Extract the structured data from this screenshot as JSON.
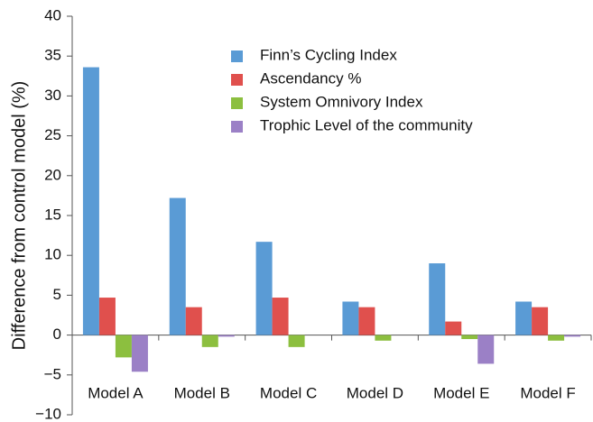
{
  "chart_data": {
    "type": "bar",
    "y_label": "Difference from control model (%)",
    "categories": [
      "Model A",
      "Model B",
      "Model C",
      "Model D",
      "Model E",
      "Model F"
    ],
    "series": [
      {
        "name": "Finn’s Cycling Index",
        "color": "#5a9bd5",
        "values": [
          33.6,
          17.2,
          11.7,
          4.2,
          9.0,
          4.2
        ]
      },
      {
        "name": "Ascendancy %",
        "color": "#e0504d",
        "values": [
          4.7,
          3.5,
          4.7,
          3.5,
          1.7,
          3.5
        ]
      },
      {
        "name": "System Omnivory Index",
        "color": "#8cbf3f",
        "values": [
          -2.8,
          -1.5,
          -1.5,
          -0.7,
          -0.5,
          -0.7
        ]
      },
      {
        "name": "Trophic Level of the community",
        "color": "#9b80c6",
        "values": [
          -4.6,
          -0.2,
          0,
          0,
          -3.6,
          -0.2
        ]
      }
    ],
    "ylim": [
      -10,
      40
    ],
    "yticks": [
      {
        "value": -10,
        "label": "−10"
      },
      {
        "value": -5,
        "label": "−5"
      },
      0,
      5,
      10,
      15,
      20,
      25,
      30,
      35,
      40
    ],
    "legend": "upper center"
  }
}
